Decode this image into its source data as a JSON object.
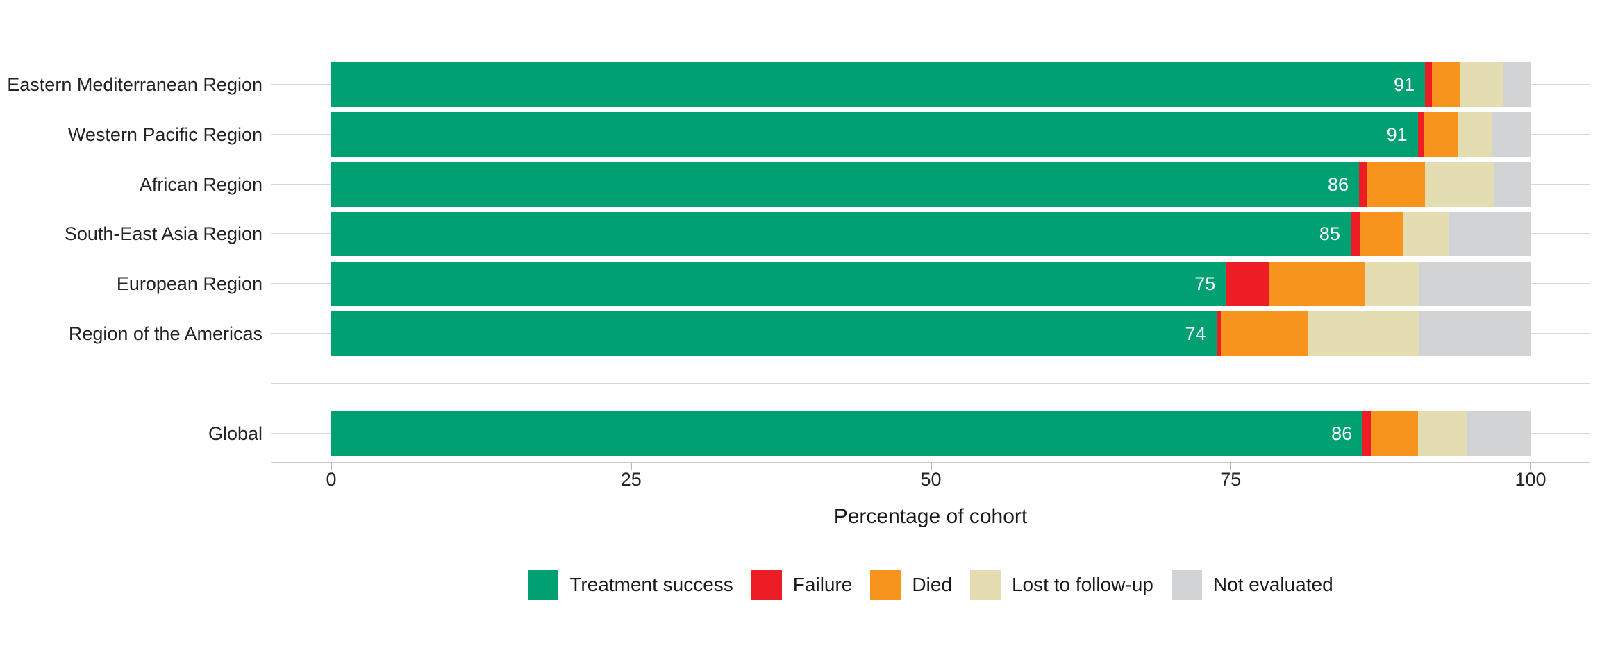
{
  "chart_data": {
    "type": "bar",
    "orientation": "horizontal",
    "stacked": true,
    "title": "",
    "xlabel": "Percentage of cohort",
    "ylabel": "",
    "xlim": [
      0,
      100
    ],
    "x_ticks": [
      0,
      25,
      50,
      75,
      100
    ],
    "grid": "horizontal category leader lines",
    "legend_position": "bottom",
    "series_names": [
      "Treatment success",
      "Failure",
      "Died",
      "Lost to follow-up",
      "Not evaluated"
    ],
    "series_colors": [
      "#00A073",
      "#EC1D25",
      "#F7941D",
      "#E4DDB2",
      "#D1D3D4"
    ],
    "categories": [
      "Eastern Mediterranean Region",
      "Western Pacific Region",
      "African Region",
      "South-East Asia Region",
      "European Region",
      "Region of the Americas",
      "",
      "Global"
    ],
    "rows": [
      {
        "label": "Eastern Mediterranean Region",
        "gap": false,
        "values": [
          91.2,
          0.6,
          2.3,
          3.6,
          2.3
        ],
        "value_label": "91"
      },
      {
        "label": "Western Pacific Region",
        "gap": false,
        "values": [
          90.6,
          0.5,
          2.9,
          2.8,
          3.2
        ],
        "value_label": "91"
      },
      {
        "label": "African Region",
        "gap": false,
        "values": [
          85.7,
          0.7,
          4.8,
          5.8,
          3.0
        ],
        "value_label": "86"
      },
      {
        "label": "South-East Asia Region",
        "gap": false,
        "values": [
          85.0,
          0.8,
          3.6,
          3.8,
          6.8
        ],
        "value_label": "85"
      },
      {
        "label": "European Region",
        "gap": false,
        "values": [
          74.6,
          3.6,
          8.0,
          4.5,
          9.3
        ],
        "value_label": "75"
      },
      {
        "label": "Region of the Americas",
        "gap": false,
        "values": [
          73.8,
          0.4,
          7.2,
          9.3,
          9.3
        ],
        "value_label": "74"
      },
      {
        "label": "",
        "gap": true,
        "values": [],
        "value_label": ""
      },
      {
        "label": "Global",
        "gap": false,
        "values": [
          86.0,
          0.7,
          3.9,
          4.1,
          5.3
        ],
        "value_label": "86"
      }
    ]
  },
  "colors": {
    "background": "#FFFFFF",
    "grid_line": "#D8D8D8",
    "axis_line": "#C9C9C9",
    "tick_mark": "#B3B3B3",
    "text_dark": "#242424",
    "bar_label_text": "#FFFFFF"
  }
}
